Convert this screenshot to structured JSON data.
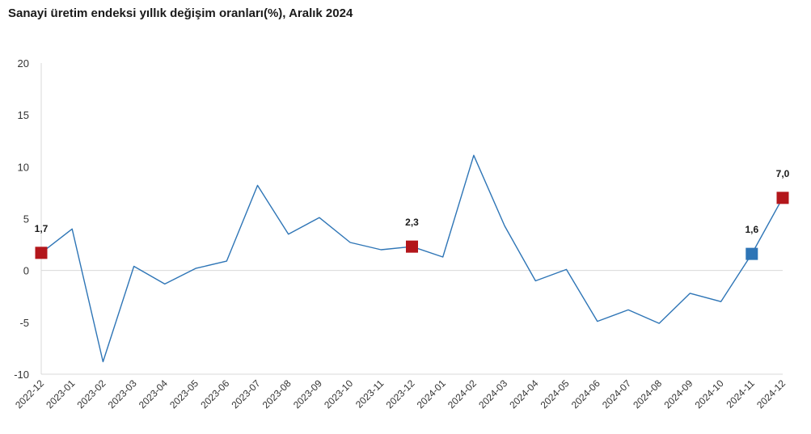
{
  "chart_data": {
    "type": "line",
    "title": "Sanayi üretim endeksi yıllık değişim oranları(%), Aralık 2024",
    "xlabel": "",
    "ylabel": "",
    "ylim": [
      -10,
      20
    ],
    "yticks": [
      20,
      15,
      10,
      5,
      0,
      -5,
      -10
    ],
    "grid": false,
    "legend": "none",
    "categories": [
      "2022-12",
      "2023-01",
      "2023-02",
      "2023-03",
      "2023-04",
      "2023-05",
      "2023-06",
      "2023-07",
      "2023-08",
      "2023-09",
      "2023-10",
      "2023-11",
      "2023-12",
      "2024-01",
      "2024-02",
      "2024-03",
      "2024-04",
      "2024-05",
      "2024-06",
      "2024-07",
      "2024-08",
      "2024-09",
      "2024-10",
      "2024-11",
      "2024-12"
    ],
    "series": [
      {
        "values": [
          1.7,
          4.0,
          -8.8,
          0.4,
          -1.3,
          0.2,
          0.9,
          8.2,
          3.5,
          5.1,
          2.7,
          2.0,
          2.3,
          1.3,
          11.1,
          4.3,
          -1.0,
          0.1,
          -4.9,
          -3.8,
          -5.1,
          -2.2,
          -3.0,
          1.6,
          7.0
        ],
        "color": "#2e75b6"
      }
    ],
    "highlights": [
      {
        "index": 0,
        "label": "1,7",
        "color": "#b3161b"
      },
      {
        "index": 12,
        "label": "2,3",
        "color": "#b3161b"
      },
      {
        "index": 23,
        "label": "1,6",
        "color": "#2e75b6"
      },
      {
        "index": 24,
        "label": "7,0",
        "color": "#b3161b"
      }
    ],
    "axis_color": "#d9d9d9"
  }
}
